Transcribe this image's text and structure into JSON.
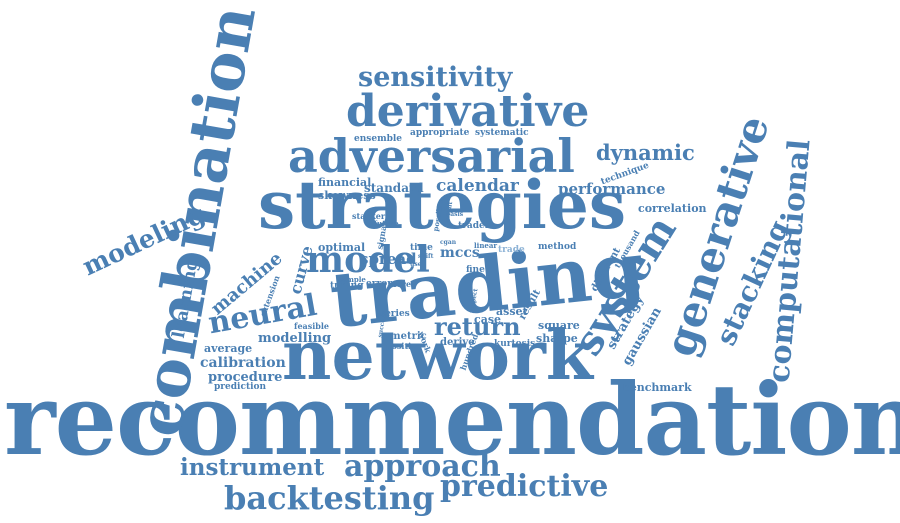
{
  "colors": {
    "word": "#4a7fb3",
    "faint_word": "#8db3d6",
    "background": "#ffffff"
  },
  "words": {
    "recommendation": "recommendation",
    "network": "network",
    "trading": "trading",
    "strategies": "strategies",
    "combination": "combination",
    "adversarial": "adversarial",
    "derivative": "derivative",
    "sensitivity": "sensitivity",
    "generative": "generative",
    "system": "system",
    "computational": "computational",
    "stacking": "stacking",
    "model": "model",
    "neural": "neural",
    "return": "return",
    "approach": "approach",
    "predictive": "predictive",
    "backtesting": "backtesting",
    "instrument": "instrument",
    "modeling": "modeling",
    "dynamic": "dynamic",
    "performance": "performance",
    "calendar": "calendar",
    "financial": "financial",
    "standard": "standard",
    "skewness": "skewness",
    "ensemble": "ensemble",
    "appropriate": "appropriate",
    "systematic": "systematic",
    "technique": "technique",
    "correlation": "correlation",
    "machine": "machine",
    "learning": "learning",
    "curve": "curve",
    "optimal": "optimal",
    "spread": "spread",
    "mccs": "mccs",
    "time": "time",
    "modelling": "modelling",
    "calibration": "calibration",
    "procedure": "procedure",
    "prediction": "prediction",
    "average": "average",
    "feasible": "feasible",
    "metric": "metric",
    "positive": "positive",
    "series": "series",
    "case": "case",
    "asset": "asset",
    "result": "result",
    "square": "square",
    "sharpe": "sharpe",
    "kurtosis": "kurtosis",
    "derive": "derive",
    "strategy": "strategy",
    "gaussian": "gaussian",
    "benchmark": "benchmark",
    "different": "different",
    "thousand": "thousand",
    "method": "method",
    "fine": "fine",
    "trader": "trader",
    "stacker": "stacker",
    "signal": "signal",
    "tuning": "tuning",
    "sample": "sample",
    "error": "error",
    "more": "more",
    "extension": "extension",
    "hundred": "hundred",
    "possible": "possible",
    "linear": "linear",
    "trade": "trade",
    "future": "future",
    "basis": "basis",
    "weight": "weight",
    "respect": "respect",
    "work": "work",
    "success": "success",
    "cgan": "cgan",
    "use": "use",
    "shift": "shift"
  }
}
